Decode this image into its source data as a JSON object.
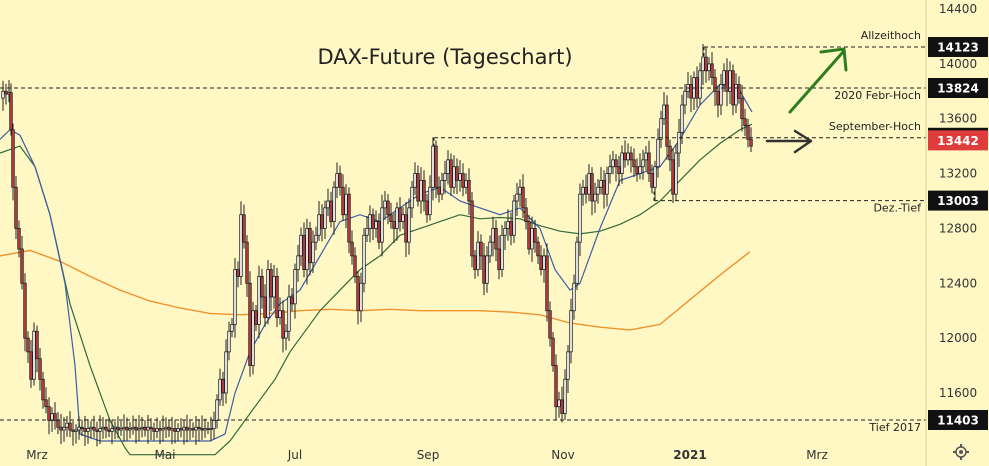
{
  "chart_data": {
    "type": "candlestick",
    "title": "DAX-Future (Tageschart)",
    "ylim": [
      11300,
      14500
    ],
    "yticks": [
      11600,
      12000,
      12400,
      12800,
      13200,
      13600,
      14000,
      14400
    ],
    "x_labels": [
      "Mrz",
      "Mai",
      "Jul",
      "Sep",
      "Nov",
      "2021",
      "Mrz"
    ],
    "levels": [
      {
        "label": "Allzeithoch",
        "value": 14123
      },
      {
        "label": "2020 Febr-Hoch",
        "value": 13824
      },
      {
        "label": "September-Hoch",
        "value": 13461
      },
      {
        "label": "Dez.-Tief",
        "value": 13003
      },
      {
        "label": "Tief 2017",
        "value": 11403
      }
    ],
    "last_price": 13442,
    "close_path": [
      [
        0,
        13750
      ],
      [
        3,
        13800
      ],
      [
        6,
        13780
      ],
      [
        9,
        13790
      ],
      [
        11,
        13520
      ],
      [
        13,
        13100
      ],
      [
        16,
        12800
      ],
      [
        19,
        12650
      ],
      [
        22,
        12400
      ],
      [
        25,
        12000
      ],
      [
        28,
        11900
      ],
      [
        31,
        11700
      ],
      [
        34,
        12050
      ],
      [
        37,
        11850
      ],
      [
        40,
        11700
      ],
      [
        43,
        11550
      ],
      [
        46,
        11500
      ],
      [
        49,
        11400
      ],
      [
        52,
        11450
      ],
      [
        55,
        11400
      ],
      [
        58,
        11350
      ],
      [
        61,
        11330
      ],
      [
        64,
        11350
      ],
      [
        67,
        11380
      ],
      [
        70,
        11330
      ],
      [
        73,
        11320
      ],
      [
        76,
        11330
      ],
      [
        79,
        11350
      ],
      [
        82,
        11340
      ],
      [
        85,
        11320
      ],
      [
        88,
        11340
      ],
      [
        91,
        11350
      ],
      [
        94,
        11330
      ],
      [
        97,
        11320
      ],
      [
        100,
        11340
      ],
      [
        103,
        11350
      ],
      [
        106,
        11330
      ],
      [
        109,
        11320
      ],
      [
        112,
        11340
      ],
      [
        115,
        11350
      ],
      [
        118,
        11330
      ],
      [
        121,
        11340
      ],
      [
        124,
        11350
      ],
      [
        127,
        11330
      ],
      [
        130,
        11340
      ],
      [
        133,
        11350
      ],
      [
        136,
        11330
      ],
      [
        139,
        11340
      ],
      [
        142,
        11350
      ],
      [
        145,
        11330
      ],
      [
        148,
        11350
      ],
      [
        151,
        11340
      ],
      [
        154,
        11320
      ],
      [
        157,
        11340
      ],
      [
        160,
        11330
      ],
      [
        163,
        11340
      ],
      [
        166,
        11350
      ],
      [
        169,
        11330
      ],
      [
        172,
        11340
      ],
      [
        175,
        11320
      ],
      [
        178,
        11340
      ],
      [
        181,
        11330
      ],
      [
        184,
        11350
      ],
      [
        187,
        11330
      ],
      [
        190,
        11340
      ],
      [
        193,
        11330
      ],
      [
        196,
        11350
      ],
      [
        199,
        11340
      ],
      [
        202,
        11330
      ],
      [
        205,
        11340
      ],
      [
        208,
        11340
      ],
      [
        211,
        11340
      ],
      [
        214,
        11400
      ],
      [
        217,
        11550
      ],
      [
        220,
        11700
      ],
      [
        223,
        11600
      ],
      [
        226,
        11900
      ],
      [
        229,
        12050
      ],
      [
        232,
        12100
      ],
      [
        235,
        12500
      ],
      [
        238,
        12450
      ],
      [
        241,
        12900
      ],
      [
        244,
        12700
      ],
      [
        247,
        12400
      ],
      [
        250,
        11800
      ],
      [
        253,
        12200
      ],
      [
        256,
        12100
      ],
      [
        259,
        12450
      ],
      [
        262,
        12300
      ],
      [
        265,
        12150
      ],
      [
        268,
        12500
      ],
      [
        271,
        12300
      ],
      [
        274,
        12450
      ],
      [
        277,
        12150
      ],
      [
        280,
        12200
      ],
      [
        283,
        12000
      ],
      [
        286,
        12050
      ],
      [
        289,
        12300
      ],
      [
        292,
        12250
      ],
      [
        295,
        12500
      ],
      [
        298,
        12600
      ],
      [
        301,
        12750
      ],
      [
        304,
        12500
      ],
      [
        307,
        12800
      ],
      [
        310,
        12550
      ],
      [
        313,
        12700
      ],
      [
        316,
        12750
      ],
      [
        319,
        12900
      ],
      [
        322,
        12800
      ],
      [
        325,
        12950
      ],
      [
        328,
        13000
      ],
      [
        331,
        12850
      ],
      [
        334,
        13100
      ],
      [
        337,
        13200
      ],
      [
        340,
        13100
      ],
      [
        343,
        12900
      ],
      [
        346,
        13050
      ],
      [
        349,
        12700
      ],
      [
        352,
        12600
      ],
      [
        355,
        12450
      ],
      [
        358,
        12200
      ],
      [
        361,
        12400
      ],
      [
        364,
        12750
      ],
      [
        367,
        12800
      ],
      [
        370,
        12900
      ],
      [
        373,
        12800
      ],
      [
        376,
        12850
      ],
      [
        379,
        12700
      ],
      [
        382,
        12950
      ],
      [
        385,
        13000
      ],
      [
        388,
        12900
      ],
      [
        391,
        12850
      ],
      [
        394,
        12800
      ],
      [
        397,
        12950
      ],
      [
        400,
        12850
      ],
      [
        403,
        12900
      ],
      [
        406,
        12700
      ],
      [
        409,
        12950
      ],
      [
        412,
        13100
      ],
      [
        415,
        13200
      ],
      [
        418,
        13000
      ],
      [
        421,
        13150
      ],
      [
        424,
        13000
      ],
      [
        427,
        12900
      ],
      [
        430,
        13100
      ],
      [
        433,
        13400
      ],
      [
        436,
        13100
      ],
      [
        439,
        13050
      ],
      [
        442,
        13150
      ],
      [
        445,
        13200
      ],
      [
        448,
        13300
      ],
      [
        451,
        13100
      ],
      [
        454,
        13250
      ],
      [
        457,
        13150
      ],
      [
        460,
        13200
      ],
      [
        463,
        13100
      ],
      [
        466,
        13150
      ],
      [
        469,
        13000
      ],
      [
        472,
        12600
      ],
      [
        475,
        12500
      ],
      [
        478,
        12700
      ],
      [
        481,
        12600
      ],
      [
        484,
        12400
      ],
      [
        487,
        12600
      ],
      [
        490,
        12700
      ],
      [
        493,
        12800
      ],
      [
        496,
        12650
      ],
      [
        499,
        12500
      ],
      [
        502,
        12750
      ],
      [
        505,
        12800
      ],
      [
        508,
        12850
      ],
      [
        511,
        12750
      ],
      [
        514,
        13000
      ],
      [
        517,
        13050
      ],
      [
        520,
        13100
      ],
      [
        523,
        12950
      ],
      [
        526,
        12850
      ],
      [
        529,
        12650
      ],
      [
        532,
        12800
      ],
      [
        535,
        12700
      ],
      [
        538,
        12600
      ],
      [
        541,
        12500
      ],
      [
        544,
        12600
      ],
      [
        547,
        12200
      ],
      [
        550,
        12000
      ],
      [
        553,
        11800
      ],
      [
        556,
        11500
      ],
      [
        559,
        11550
      ],
      [
        562,
        11450
      ],
      [
        565,
        11700
      ],
      [
        568,
        11900
      ],
      [
        571,
        12200
      ],
      [
        574,
        12400
      ],
      [
        577,
        12700
      ],
      [
        580,
        13050
      ],
      [
        583,
        13100
      ],
      [
        586,
        13050
      ],
      [
        589,
        13200
      ],
      [
        592,
        13000
      ],
      [
        595,
        13050
      ],
      [
        598,
        13100
      ],
      [
        601,
        13150
      ],
      [
        604,
        13050
      ],
      [
        607,
        13200
      ],
      [
        610,
        13250
      ],
      [
        613,
        13300
      ],
      [
        616,
        13250
      ],
      [
        619,
        13200
      ],
      [
        622,
        13350
      ],
      [
        625,
        13300
      ],
      [
        628,
        13350
      ],
      [
        631,
        13300
      ],
      [
        634,
        13250
      ],
      [
        637,
        13200
      ],
      [
        640,
        13250
      ],
      [
        643,
        13300
      ],
      [
        646,
        13350
      ],
      [
        649,
        13200
      ],
      [
        652,
        13100
      ],
      [
        655,
        13250
      ],
      [
        658,
        13450
      ],
      [
        661,
        13600
      ],
      [
        664,
        13700
      ],
      [
        667,
        13400
      ],
      [
        670,
        13300
      ],
      [
        673,
        13050
      ],
      [
        676,
        13350
      ],
      [
        679,
        13500
      ],
      [
        682,
        13700
      ],
      [
        685,
        13800
      ],
      [
        688,
        13850
      ],
      [
        691,
        13750
      ],
      [
        694,
        13900
      ],
      [
        697,
        13750
      ],
      [
        700,
        13950
      ],
      [
        703,
        14050
      ],
      [
        706,
        13950
      ],
      [
        709,
        14000
      ],
      [
        712,
        13900
      ],
      [
        715,
        13800
      ],
      [
        718,
        13700
      ],
      [
        721,
        13850
      ],
      [
        724,
        13950
      ],
      [
        727,
        13800
      ],
      [
        730,
        13950
      ],
      [
        733,
        13700
      ],
      [
        736,
        13850
      ],
      [
        739,
        13750
      ],
      [
        742,
        13600
      ],
      [
        745,
        13550
      ],
      [
        748,
        13450
      ],
      [
        751,
        13400
      ]
    ]
  },
  "overlays": {
    "ma_200": [
      [
        0,
        12600
      ],
      [
        30,
        12640
      ],
      [
        60,
        12560
      ],
      [
        90,
        12450
      ],
      [
        120,
        12350
      ],
      [
        150,
        12270
      ],
      [
        180,
        12220
      ],
      [
        210,
        12180
      ],
      [
        240,
        12170
      ],
      [
        270,
        12180
      ],
      [
        300,
        12200
      ],
      [
        330,
        12210
      ],
      [
        360,
        12200
      ],
      [
        390,
        12210
      ],
      [
        420,
        12200
      ],
      [
        450,
        12200
      ],
      [
        480,
        12200
      ],
      [
        510,
        12190
      ],
      [
        540,
        12170
      ],
      [
        570,
        12110
      ],
      [
        600,
        12080
      ],
      [
        630,
        12060
      ],
      [
        660,
        12100
      ],
      [
        690,
        12280
      ],
      [
        720,
        12460
      ],
      [
        750,
        12630
      ]
    ],
    "ma_50": [
      [
        0,
        13350
      ],
      [
        20,
        13400
      ],
      [
        35,
        13250
      ],
      [
        50,
        12900
      ],
      [
        70,
        12250
      ],
      [
        90,
        11800
      ],
      [
        110,
        11400
      ],
      [
        125,
        11200
      ],
      [
        130,
        11150
      ],
      [
        200,
        11150
      ],
      [
        215,
        11150
      ],
      [
        230,
        11250
      ],
      [
        245,
        11400
      ],
      [
        260,
        11550
      ],
      [
        275,
        11700
      ],
      [
        290,
        11900
      ],
      [
        305,
        12050
      ],
      [
        320,
        12200
      ],
      [
        340,
        12350
      ],
      [
        360,
        12500
      ],
      [
        380,
        12600
      ],
      [
        400,
        12750
      ],
      [
        420,
        12800
      ],
      [
        440,
        12850
      ],
      [
        460,
        12900
      ],
      [
        480,
        12870
      ],
      [
        500,
        12880
      ],
      [
        520,
        12870
      ],
      [
        540,
        12820
      ],
      [
        560,
        12780
      ],
      [
        580,
        12760
      ],
      [
        600,
        12780
      ],
      [
        620,
        12830
      ],
      [
        640,
        12900
      ],
      [
        660,
        13000
      ],
      [
        680,
        13150
      ],
      [
        700,
        13300
      ],
      [
        720,
        13420
      ],
      [
        740,
        13520
      ],
      [
        752,
        13560
      ]
    ],
    "ma_20": [
      [
        0,
        13450
      ],
      [
        10,
        13520
      ],
      [
        20,
        13480
      ],
      [
        35,
        13250
      ],
      [
        50,
        12900
      ],
      [
        65,
        12400
      ],
      [
        75,
        11800
      ],
      [
        80,
        11300
      ],
      [
        100,
        11250
      ],
      [
        210,
        11250
      ],
      [
        225,
        11300
      ],
      [
        235,
        11600
      ],
      [
        250,
        11900
      ],
      [
        265,
        12100
      ],
      [
        280,
        12250
      ],
      [
        300,
        12350
      ],
      [
        320,
        12600
      ],
      [
        340,
        12850
      ],
      [
        360,
        12900
      ],
      [
        380,
        12850
      ],
      [
        400,
        12950
      ],
      [
        420,
        13050
      ],
      [
        440,
        13100
      ],
      [
        460,
        13000
      ],
      [
        480,
        12950
      ],
      [
        500,
        12900
      ],
      [
        520,
        12950
      ],
      [
        540,
        12800
      ],
      [
        555,
        12500
      ],
      [
        570,
        12350
      ],
      [
        580,
        12400
      ],
      [
        600,
        12800
      ],
      [
        620,
        13150
      ],
      [
        640,
        13200
      ],
      [
        660,
        13250
      ],
      [
        680,
        13450
      ],
      [
        700,
        13700
      ],
      [
        720,
        13850
      ],
      [
        740,
        13800
      ],
      [
        752,
        13650
      ]
    ],
    "arrows": [
      {
        "color": "#2e7d1f",
        "kind": "up"
      },
      {
        "color": "#333333",
        "kind": "right"
      }
    ],
    "badge_colors": {
      "level": "#111111",
      "level_text": "#ffffff",
      "last": "#e03c3c",
      "last_text": "#ffffff"
    }
  }
}
